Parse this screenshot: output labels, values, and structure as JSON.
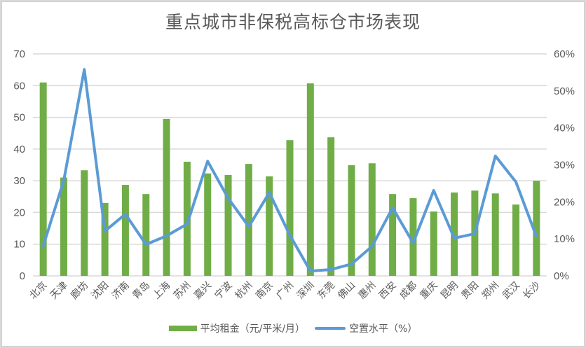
{
  "chart_data": {
    "type": "bar+line",
    "title": "重点城市非保税高标仓市场表现",
    "categories": [
      "北京",
      "天津",
      "廊坊",
      "沈阳",
      "济南",
      "青岛",
      "上海",
      "苏州",
      "嘉兴",
      "宁波",
      "杭州",
      "南京",
      "广州",
      "深圳",
      "东莞",
      "佛山",
      "惠州",
      "西安",
      "成都",
      "重庆",
      "昆明",
      "贵阳",
      "郑州",
      "武汉",
      "长沙"
    ],
    "series": [
      {
        "name": "平均租金（元/平米/月）",
        "type": "bar",
        "axis": "left",
        "color": "#70ad47",
        "values": [
          61,
          31,
          33.3,
          23,
          28.7,
          25.8,
          49.5,
          36,
          32.3,
          31.8,
          35.3,
          31.4,
          42.8,
          60.7,
          43.7,
          34.9,
          35.5,
          25.8,
          24.5,
          20.3,
          26.3,
          26.9,
          26,
          22.5,
          30
        ]
      },
      {
        "name": "空置水平（%）",
        "type": "line",
        "axis": "right",
        "color": "#5b9bd5",
        "values": [
          8.1,
          25.8,
          55.8,
          12.1,
          16.7,
          8.5,
          10.8,
          14,
          31,
          21,
          13.3,
          22.5,
          11,
          1.3,
          1.7,
          3.2,
          8,
          18.4,
          8.9,
          23.1,
          10.2,
          11.4,
          32.4,
          25.4,
          10.6
        ]
      }
    ],
    "left_axis": {
      "ticks": [
        "0",
        "10",
        "20",
        "30",
        "40",
        "50",
        "60",
        "70"
      ],
      "ylim": [
        0,
        70
      ]
    },
    "right_axis": {
      "ticks": [
        "0%",
        "10%",
        "20%",
        "30%",
        "40%",
        "50%",
        "60%"
      ],
      "ylim": [
        0,
        60
      ]
    },
    "xlabel": "",
    "ylabel": "",
    "grid": true,
    "legend_position": "bottom"
  },
  "legend": {
    "bar_label": "平均租金（元/平米/月）",
    "line_label": "空置水平（%）"
  }
}
